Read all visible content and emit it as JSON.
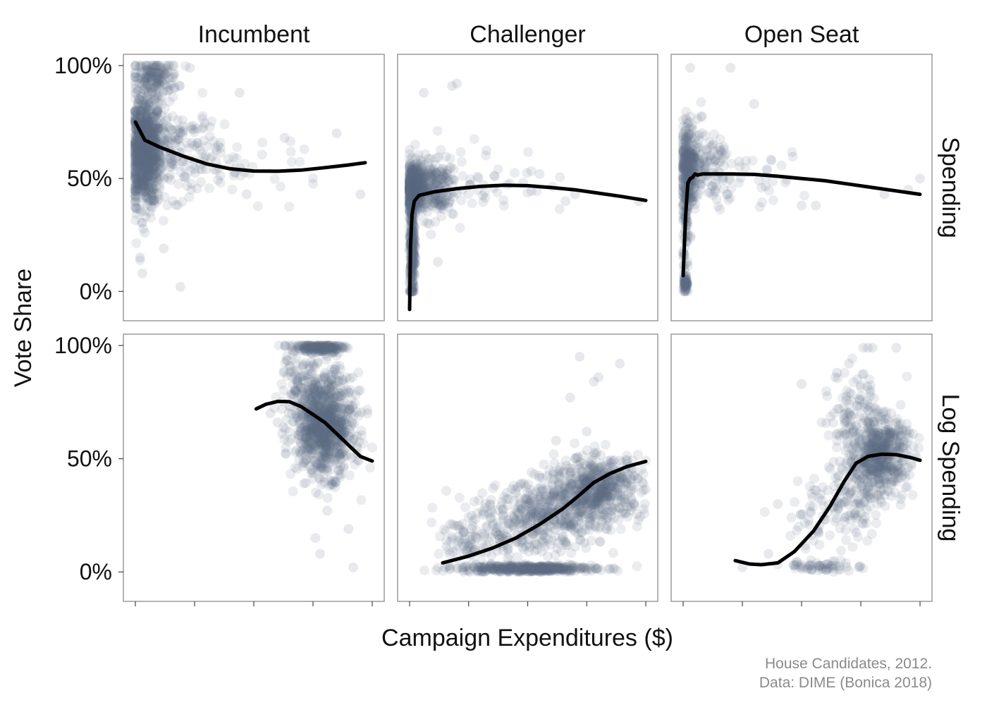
{
  "chart_data": {
    "type": "scatter",
    "xlabel": "Campaign Expenditures ($)",
    "ylabel": "Vote Share",
    "caption": [
      "House Candidates, 2012.",
      "Data: DIME (Bonica 2018)"
    ],
    "columns": [
      "Incumbent",
      "Challenger",
      "Open Seat"
    ],
    "rows": [
      "Spending",
      "Log Spending"
    ],
    "y_ticks": [
      0,
      50,
      100
    ],
    "y_tick_labels": [
      "0%",
      "50%",
      "100%"
    ],
    "ylim": [
      -13,
      105
    ],
    "x_tick_count": 5,
    "colors": {
      "points": "#5b6e87",
      "smooth": "#000000",
      "panel_border": "#9a9a9a",
      "caption": "#8a8a8a"
    },
    "panels": [
      {
        "row": "Spending",
        "column": "Incumbent",
        "xlim": [
          0,
          1
        ],
        "clusters": [
          {
            "cx": 0.04,
            "cy": 62,
            "sx": 0.035,
            "sy": 12,
            "n": 900
          },
          {
            "cx": 0.08,
            "cy": 95,
            "sx": 0.05,
            "sy": 4,
            "n": 160
          },
          {
            "cx": 0.18,
            "cy": 62,
            "sx": 0.09,
            "sy": 10,
            "n": 170
          },
          {
            "cx": 0.45,
            "cy": 55,
            "sx": 0.18,
            "sy": 7,
            "n": 40
          }
        ],
        "outliers": [
          [
            0.19,
            2
          ],
          [
            0.03,
            8
          ],
          [
            0.02,
            15
          ],
          [
            0.12,
            19
          ],
          [
            0.04,
            26
          ],
          [
            0.47,
            43
          ],
          [
            0.85,
            70
          ],
          [
            0.95,
            43
          ],
          [
            0.63,
            68
          ],
          [
            0.44,
            88
          ],
          [
            0.23,
            99
          ]
        ],
        "smooth": [
          [
            0.0,
            75
          ],
          [
            0.04,
            67
          ],
          [
            0.1,
            64
          ],
          [
            0.2,
            60
          ],
          [
            0.3,
            56.5
          ],
          [
            0.4,
            54.3
          ],
          [
            0.5,
            53.3
          ],
          [
            0.6,
            53.2
          ],
          [
            0.7,
            53.7
          ],
          [
            0.8,
            54.8
          ],
          [
            0.9,
            56
          ],
          [
            0.97,
            57
          ]
        ]
      },
      {
        "row": "Spending",
        "column": "Challenger",
        "xlim": [
          0,
          1
        ],
        "clusters": [
          {
            "cx": 0.02,
            "cy": 46,
            "sx": 0.02,
            "sy": 5,
            "n": 600
          },
          {
            "cx": 0.01,
            "cy": 20,
            "sx": 0.006,
            "sy": 12,
            "n": 280
          },
          {
            "cx": 0.1,
            "cy": 46,
            "sx": 0.05,
            "sy": 7,
            "n": 200
          },
          {
            "cx": 0.3,
            "cy": 50,
            "sx": 0.14,
            "sy": 8,
            "n": 50
          }
        ],
        "outliers": [
          [
            0.2,
            92
          ],
          [
            0.18,
            91
          ],
          [
            0.06,
            88
          ],
          [
            0.7,
            43
          ],
          [
            0.66,
            40
          ],
          [
            0.97,
            40
          ],
          [
            0.55,
            52
          ],
          [
            0.12,
            13
          ]
        ],
        "smooth": [
          [
            0.0,
            -8
          ],
          [
            0.004,
            20
          ],
          [
            0.01,
            34
          ],
          [
            0.02,
            40
          ],
          [
            0.04,
            42.5
          ],
          [
            0.1,
            44
          ],
          [
            0.2,
            45.5
          ],
          [
            0.3,
            46.5
          ],
          [
            0.4,
            47
          ],
          [
            0.5,
            46.8
          ],
          [
            0.6,
            46
          ],
          [
            0.7,
            45
          ],
          [
            0.8,
            43.5
          ],
          [
            0.9,
            42
          ],
          [
            1.0,
            40.3
          ]
        ]
      },
      {
        "row": "Spending",
        "column": "Open Seat",
        "xlim": [
          0,
          1
        ],
        "clusters": [
          {
            "cx": 0.02,
            "cy": 55,
            "sx": 0.018,
            "sy": 10,
            "n": 300
          },
          {
            "cx": 0.01,
            "cy": 3,
            "sx": 0.004,
            "sy": 2,
            "n": 60
          },
          {
            "cx": 0.012,
            "cy": 28,
            "sx": 0.006,
            "sy": 12,
            "n": 60
          },
          {
            "cx": 0.1,
            "cy": 54,
            "sx": 0.06,
            "sy": 9,
            "n": 130
          },
          {
            "cx": 0.3,
            "cy": 50,
            "sx": 0.12,
            "sy": 6,
            "n": 30
          }
        ],
        "outliers": [
          [
            0.3,
            83
          ],
          [
            0.2,
            99
          ],
          [
            0.03,
            99
          ],
          [
            1.0,
            50
          ],
          [
            0.95,
            45
          ],
          [
            0.5,
            38
          ],
          [
            0.56,
            38
          ],
          [
            0.85,
            43
          ]
        ],
        "smooth": [
          [
            0.0,
            7
          ],
          [
            0.01,
            33
          ],
          [
            0.02,
            48
          ],
          [
            0.03,
            50
          ],
          [
            0.04,
            50.5
          ],
          [
            0.05,
            52
          ],
          [
            0.06,
            51.5
          ],
          [
            0.08,
            52
          ],
          [
            0.1,
            52
          ],
          [
            0.2,
            52
          ],
          [
            0.3,
            51.8
          ],
          [
            0.4,
            51
          ],
          [
            0.5,
            50
          ],
          [
            0.6,
            49
          ],
          [
            0.7,
            47.5
          ],
          [
            0.8,
            46
          ],
          [
            0.9,
            44.5
          ],
          [
            1.0,
            43
          ]
        ]
      },
      {
        "row": "Log Spending",
        "column": "Incumbent",
        "xlim": [
          0,
          1
        ],
        "clusters": [
          {
            "cx": 0.8,
            "cy": 65,
            "sx": 0.06,
            "sy": 11,
            "n": 900
          },
          {
            "cx": 0.78,
            "cy": 99,
            "sx": 0.05,
            "sy": 1,
            "n": 180
          },
          {
            "cx": 0.68,
            "cy": 80,
            "sx": 0.05,
            "sy": 12,
            "n": 110
          }
        ],
        "outliers": [
          [
            0.57,
            70
          ],
          [
            0.6,
            66
          ],
          [
            0.62,
            61
          ],
          [
            0.76,
            15
          ],
          [
            0.78,
            8
          ],
          [
            0.9,
            19
          ],
          [
            0.92,
            2
          ],
          [
            0.86,
            43
          ],
          [
            0.98,
            70
          ],
          [
            0.81,
            27
          ]
        ],
        "smooth": [
          [
            0.51,
            72
          ],
          [
            0.55,
            74
          ],
          [
            0.6,
            75.3
          ],
          [
            0.65,
            75.2
          ],
          [
            0.7,
            73
          ],
          [
            0.75,
            69.5
          ],
          [
            0.8,
            66
          ],
          [
            0.85,
            61
          ],
          [
            0.9,
            56
          ],
          [
            0.95,
            51
          ],
          [
            1.0,
            49
          ]
        ]
      },
      {
        "row": "Log Spending",
        "column": "Challenger",
        "xlim": [
          0,
          1
        ],
        "clusters": [
          {
            "cx": 0.8,
            "cy": 37,
            "sx": 0.09,
            "sy": 7,
            "n": 520
          },
          {
            "cx": 0.6,
            "cy": 25,
            "sx": 0.11,
            "sy": 8,
            "n": 360
          },
          {
            "cx": 0.4,
            "cy": 20,
            "sx": 0.1,
            "sy": 7,
            "n": 120
          },
          {
            "cx": 0.5,
            "cy": 1.5,
            "sx": 0.14,
            "sy": 0.8,
            "n": 420
          },
          {
            "cx": 0.25,
            "cy": 12,
            "sx": 0.06,
            "sy": 8,
            "n": 60
          }
        ],
        "outliers": [
          [
            0.72,
            95
          ],
          [
            0.89,
            92
          ],
          [
            0.8,
            86
          ],
          [
            0.78,
            84
          ],
          [
            0.68,
            77
          ],
          [
            0.75,
            62
          ],
          [
            0.62,
            58
          ],
          [
            0.15,
            2
          ],
          [
            0.17,
            8
          ]
        ],
        "smooth": [
          [
            0.14,
            4
          ],
          [
            0.25,
            7
          ],
          [
            0.35,
            10.5
          ],
          [
            0.45,
            15
          ],
          [
            0.55,
            21
          ],
          [
            0.65,
            28
          ],
          [
            0.72,
            34
          ],
          [
            0.78,
            39.5
          ],
          [
            0.85,
            43.5
          ],
          [
            0.92,
            46.5
          ],
          [
            1.0,
            48.8
          ]
        ]
      },
      {
        "row": "Log Spending",
        "column": "Open Seat",
        "xlim": [
          0,
          1
        ],
        "clusters": [
          {
            "cx": 0.83,
            "cy": 52,
            "sx": 0.06,
            "sy": 8,
            "n": 520
          },
          {
            "cx": 0.72,
            "cy": 35,
            "sx": 0.06,
            "sy": 10,
            "n": 140
          },
          {
            "cx": 0.72,
            "cy": 72,
            "sx": 0.05,
            "sy": 9,
            "n": 90
          },
          {
            "cx": 0.6,
            "cy": 2.5,
            "sx": 0.08,
            "sy": 1.2,
            "n": 60
          },
          {
            "cx": 0.55,
            "cy": 25,
            "sx": 0.07,
            "sy": 8,
            "n": 40
          }
        ],
        "outliers": [
          [
            0.8,
            99
          ],
          [
            0.78,
            99
          ],
          [
            0.76,
            99
          ],
          [
            0.9,
            99
          ],
          [
            0.65,
            88
          ],
          [
            0.7,
            92
          ],
          [
            0.5,
            83
          ],
          [
            0.25,
            2
          ],
          [
            0.36,
            8
          ],
          [
            0.4,
            30
          ]
        ],
        "smooth": [
          [
            0.22,
            5
          ],
          [
            0.28,
            3.5
          ],
          [
            0.33,
            3.2
          ],
          [
            0.4,
            4
          ],
          [
            0.47,
            9
          ],
          [
            0.55,
            18
          ],
          [
            0.62,
            29
          ],
          [
            0.68,
            40
          ],
          [
            0.73,
            48
          ],
          [
            0.78,
            51
          ],
          [
            0.84,
            52
          ],
          [
            0.9,
            51.8
          ],
          [
            0.96,
            50.5
          ],
          [
            1.0,
            49.3
          ]
        ]
      }
    ]
  }
}
